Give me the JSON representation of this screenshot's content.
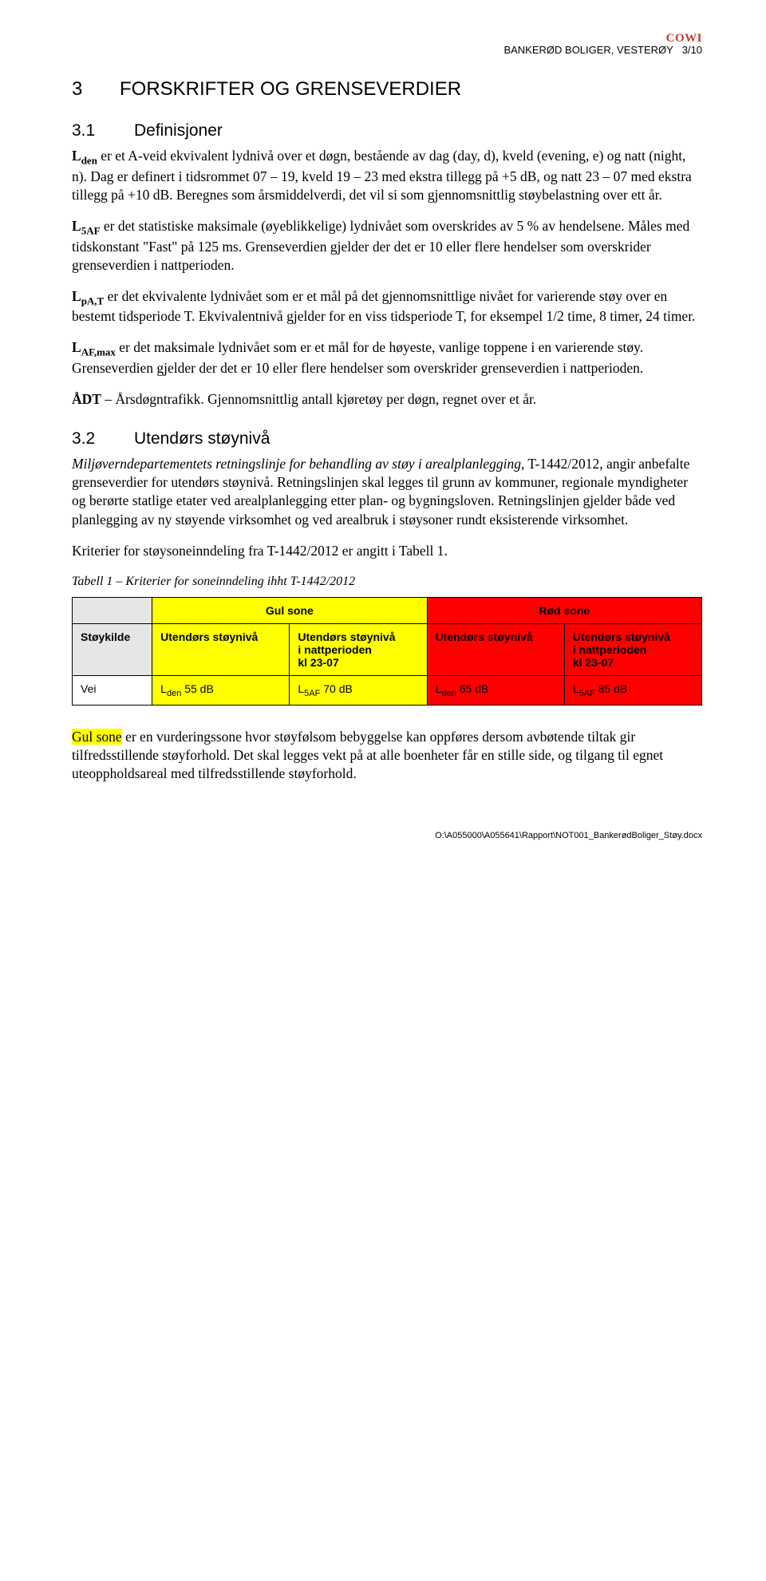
{
  "header": {
    "logo": "COWI",
    "doc_title": "BANKERØD BOLIGER, VESTERØY",
    "page_num": "3/10"
  },
  "s3": {
    "num": "3",
    "title": "FORSKRIFTER OG GRENSEVERDIER"
  },
  "s31": {
    "num": "3.1",
    "title": "Definisjoner",
    "p1a": "L",
    "p1a_sub": "den",
    "p1b": " er et A-veid ekvivalent lydnivå over et døgn, bestående av dag (day, d), kveld (evening, e) og natt (night, n). Dag er definert i tidsrommet 07 – 19, kveld 19 – 23 med ekstra tillegg på +5 dB, og natt 23 – 07 med ekstra tillegg på +10 dB. Beregnes som årsmiddelverdi, det vil si som gjennomsnittlig støybelastning over ett år.",
    "p2a": "L",
    "p2a_sub": "5AF",
    "p2b": " er det statistiske maksimale (øyeblikkelige) lydnivået som overskrides av 5 % av hendelsene. Måles med tidskonstant \"Fast\" på 125 ms. Grenseverdien gjelder der det er 10 eller flere hendelser som overskrider grenseverdien i nattperioden.",
    "p3a": "L",
    "p3a_sub": "pA,T",
    "p3b": " er det ekvivalente lydnivået som er et mål på det gjennomsnittlige nivået for varierende støy over en bestemt tidsperiode T. Ekvivalentnivå gjelder for en viss tidsperiode T, for eksempel 1/2 time, 8 timer, 24 timer.",
    "p4a": "L",
    "p4a_sub": "AF,max",
    "p4b": " er det maksimale lydnivået som er et mål for de høyeste, vanlige toppene i en varierende støy. Grenseverdien gjelder der det er 10 eller flere hendelser som overskrider grenseverdien i nattperioden.",
    "p5a": "ÅDT",
    "p5b": " – Årsdøgntrafikk. Gjennomsnittlig antall kjøretøy per døgn, regnet over et år."
  },
  "s32": {
    "num": "3.2",
    "title": "Utendørs støynivå",
    "p1a": "Miljøverndepartementets retningslinje for behandling av støy i arealplanlegging",
    "p1b": ", T-1442/2012, angir anbefalte grenseverdier for utendørs støynivå. Retningslinjen skal legges til grunn av kommuner, regionale myndigheter og berørte statlige etater ved arealplanlegging etter plan- og bygningsloven. Retningslinjen gjelder både ved planlegging av ny støyende virksomhet og ved arealbruk i støysoner rundt eksisterende virksomhet.",
    "p2": "Kriterier for støysoneinndeling fra T-1442/2012 er angitt i Tabell 1.",
    "table_caption": "Tabell 1 – Kriterier for soneinndeling ihht T-1442/2012",
    "p3a": "Gul sone",
    "p3b": " er en vurderingssone hvor støyfølsom bebyggelse kan oppføres dersom avbøtende tiltak gir tilfredsstillende støyforhold. Det skal legges vekt på at alle boenheter får en stille side, og tilgang til egnet uteoppholdsareal med tilfredsstillende støyforhold."
  },
  "table": {
    "gul_sone": "Gul sone",
    "rod_sone": "Rød sone",
    "stoykilde": "Støykilde",
    "utendors": "Utendørs støynivå",
    "utendors_natt_l1": "Utendørs støynivå",
    "utendors_natt_l2": "i nattperioden",
    "utendors_natt_l3": "kl 23-07",
    "vei": "Vei",
    "v1a": "L",
    "v1a_sub": "den",
    "v1b": " 55 dB",
    "v2a": "L",
    "v2a_sub": "5AF",
    "v2b": " 70 dB",
    "v3a": "L",
    "v3a_sub": "den",
    "v3b": " 65 dB",
    "v4a": "L",
    "v4a_sub": "5AF",
    "v4b": " 85 dB",
    "colors": {
      "yellow": "#ffff00",
      "red": "#ff0000",
      "gray": "#e6e6e6",
      "white": "#ffffff",
      "border": "#000000",
      "text": "#000000"
    },
    "font": {
      "family": "Verdana",
      "size_pt": 10,
      "weight_header": "bold",
      "weight_body": "normal"
    },
    "col_widths_pct": [
      18,
      18,
      23,
      18,
      23
    ]
  },
  "footer": {
    "path": "O:\\A055000\\A055641\\Rapport\\NOT001_BankerødBoliger_Støy.docx"
  }
}
